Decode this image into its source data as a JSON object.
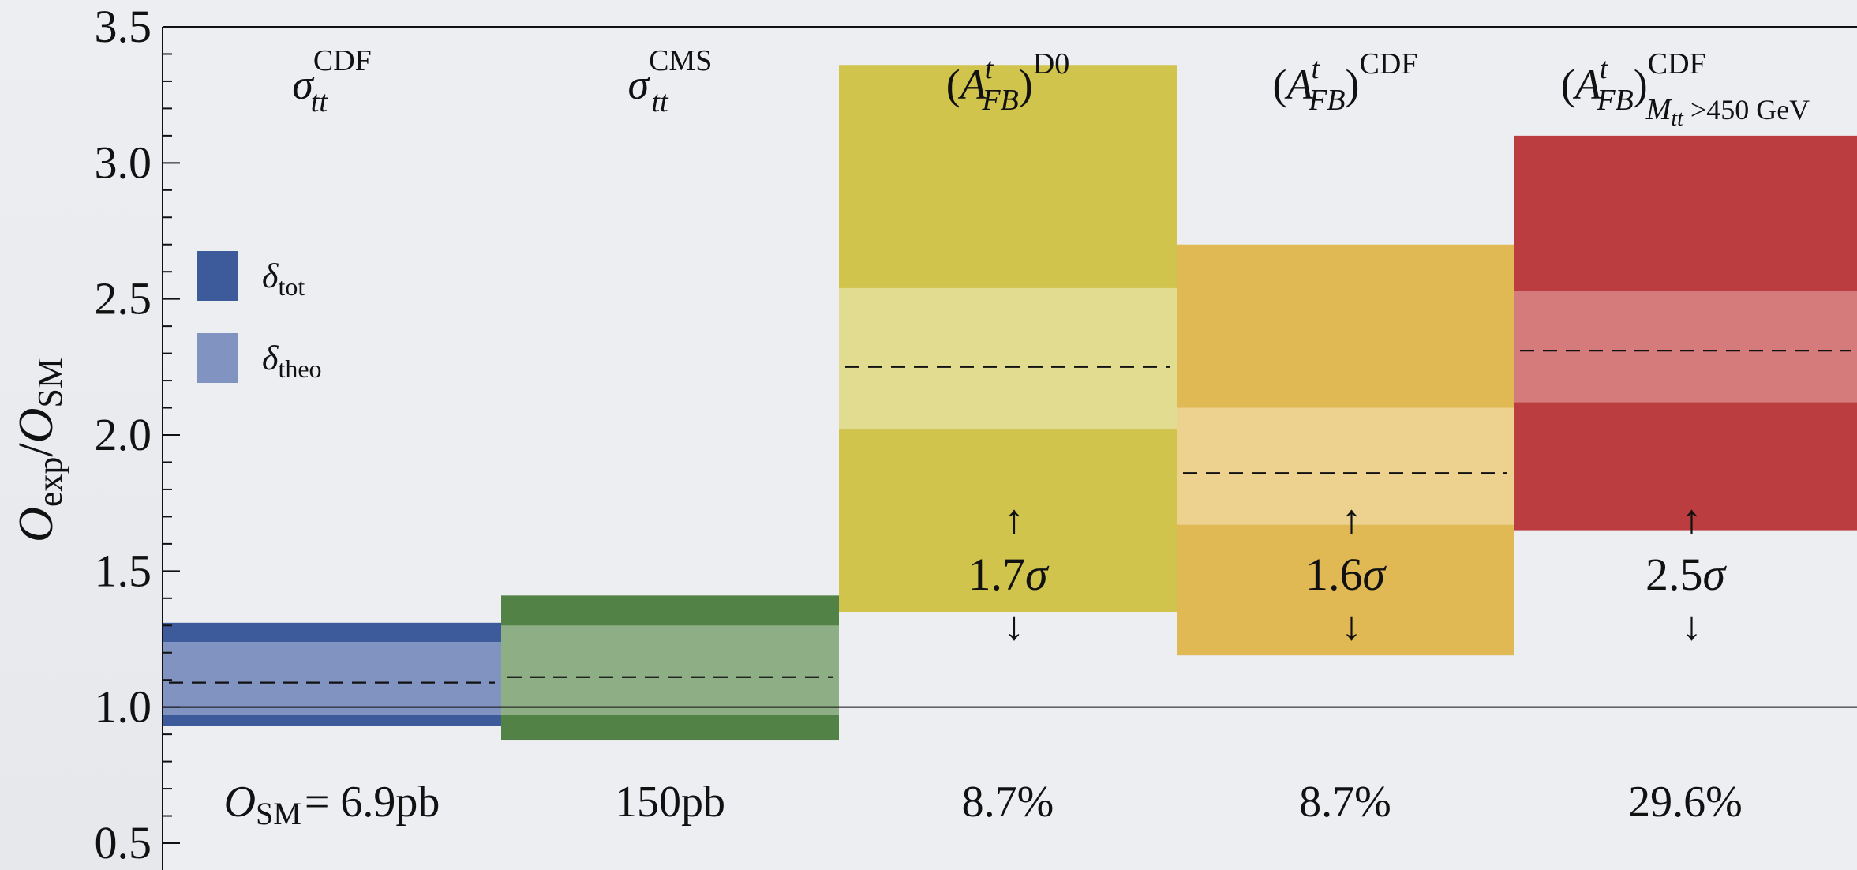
{
  "chart_data": {
    "type": "bar",
    "ylabel": {
      "main": "O",
      "sub1": "exp",
      "slash": "/",
      "main2": "O",
      "sub2": "SM"
    },
    "ylim": [
      0.5,
      3.5
    ],
    "yticks": [
      "0.5",
      "1.0",
      "1.5",
      "2.0",
      "2.5",
      "3.0",
      "3.5"
    ],
    "ytick_values": [
      0.5,
      1.0,
      1.5,
      2.0,
      2.5,
      3.0,
      3.5
    ],
    "reference_line": 1.0,
    "legend": {
      "placement": "left",
      "items": [
        {
          "label": "δ",
          "sub": "tot",
          "color": "#3d5a9a"
        },
        {
          "label": "δ",
          "sub": "theo",
          "color": "#8193c1"
        }
      ]
    },
    "columns": [
      {
        "title_parts": {
          "pre": "",
          "main": "σ",
          "paren_close": "",
          "sup": "CDF",
          "sub": "tt",
          "sub2": ""
        },
        "central": 1.09,
        "tot": [
          0.93,
          1.31
        ],
        "theo": [
          0.97,
          1.24
        ],
        "color_tot": "#3d5a9a",
        "color_theo": "#8193c1",
        "significance": "",
        "bottom_label_main": "O",
        "bottom_label_sub": "SM",
        "bottom_label_rest": "= 6.9pb"
      },
      {
        "title_parts": {
          "pre": "",
          "main": "σ",
          "paren_close": "",
          "sup": "CMS",
          "sub": "tt",
          "sub2": ""
        },
        "central": 1.11,
        "tot": [
          0.88,
          1.41
        ],
        "theo": [
          0.97,
          1.3
        ],
        "color_tot": "#528245",
        "color_theo": "#8eae85",
        "significance": "",
        "bottom_label_main": "",
        "bottom_label_sub": "",
        "bottom_label_rest": "150pb"
      },
      {
        "title_parts": {
          "pre": "(A",
          "main": "",
          "paren_close": ")",
          "sup": "D0",
          "sub": "FB",
          "sub2": "t"
        },
        "central": 2.25,
        "tot": [
          1.35,
          3.36
        ],
        "theo": [
          2.02,
          2.54
        ],
        "color_tot": "#d0c44d",
        "color_theo": "#e2dc91",
        "significance": "1.7σ",
        "bottom_label_main": "",
        "bottom_label_sub": "",
        "bottom_label_rest": "8.7%"
      },
      {
        "title_parts": {
          "pre": "(A",
          "main": "",
          "paren_close": ")",
          "sup": "CDF",
          "sub": "FB",
          "sub2": "t"
        },
        "central": 1.86,
        "tot": [
          1.19,
          2.7
        ],
        "theo": [
          1.67,
          2.1
        ],
        "color_tot": "#e1b954",
        "color_theo": "#ecd18f",
        "significance": "1.6σ",
        "bottom_label_main": "",
        "bottom_label_sub": "",
        "bottom_label_rest": "8.7%"
      },
      {
        "title_parts": {
          "pre": "(A",
          "main": "",
          "paren_close": ")",
          "sup": "CDF",
          "sub": "FB",
          "sub2": "t",
          "cut": "M",
          "cut_sub": "tt",
          "cut_rest": " >450 GeV"
        },
        "central": 2.31,
        "tot": [
          1.65,
          3.1
        ],
        "theo": [
          2.12,
          2.53
        ],
        "color_tot": "#bc3d3f",
        "color_theo": "#d57b7c",
        "significance": "2.5σ",
        "bottom_label_main": "",
        "bottom_label_sub": "",
        "bottom_label_rest": "29.6%"
      }
    ],
    "arrows": {
      "up": "↑",
      "down": "↓"
    }
  }
}
